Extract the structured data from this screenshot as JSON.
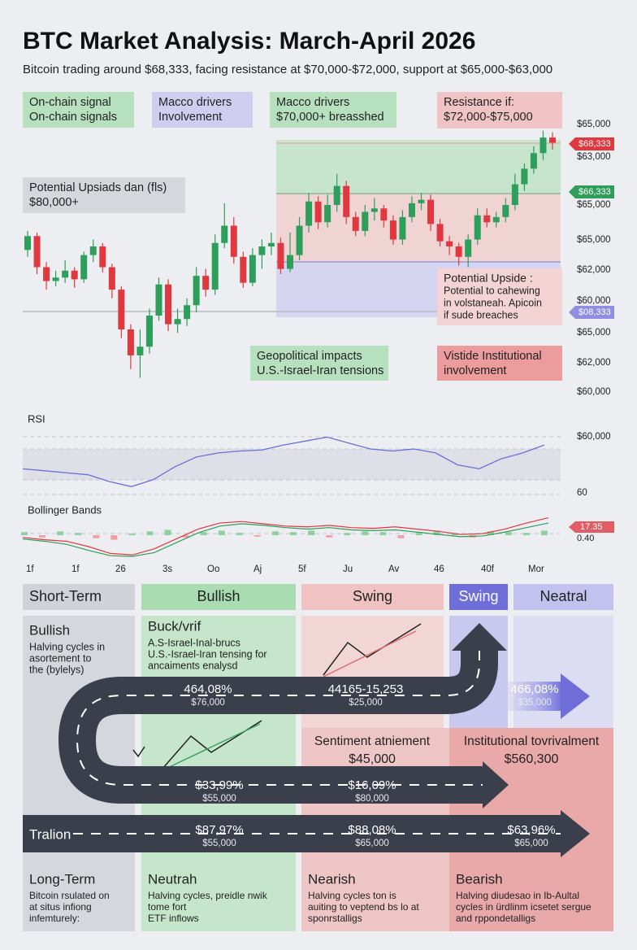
{
  "header": {
    "title": "BTC Market Analysis: March-April 2026",
    "subtitle": "Bitcoin trading around $68,333, facing resistance at $70,000-$72,000, support at $65,000-$63,000"
  },
  "chart_data": {
    "type": "candlestick",
    "ylim": [
      58000,
      74000
    ],
    "up_color": "#2e9e5b",
    "down_color": "#e0383e",
    "ohlc": [
      [
        66600,
        67700,
        66200,
        67400
      ],
      [
        67400,
        67600,
        65200,
        65600
      ],
      [
        65600,
        65900,
        64300,
        64800
      ],
      [
        64800,
        65400,
        64500,
        65000
      ],
      [
        65000,
        66000,
        64700,
        65400
      ],
      [
        65400,
        65600,
        64400,
        64900
      ],
      [
        64900,
        66500,
        64700,
        66300
      ],
      [
        66300,
        67200,
        65900,
        66800
      ],
      [
        66800,
        67000,
        65300,
        65600
      ],
      [
        65600,
        65800,
        63800,
        64300
      ],
      [
        64300,
        64500,
        61500,
        62000
      ],
      [
        62000,
        62300,
        59700,
        60500
      ],
      [
        60500,
        62000,
        59200,
        61000
      ],
      [
        61000,
        63200,
        60600,
        62800
      ],
      [
        62800,
        65000,
        62500,
        64600
      ],
      [
        64600,
        64900,
        61900,
        62300
      ],
      [
        62300,
        63200,
        61800,
        62600
      ],
      [
        62600,
        63800,
        62200,
        63400
      ],
      [
        63400,
        65600,
        63000,
        65100
      ],
      [
        65100,
        65500,
        63900,
        64300
      ],
      [
        64300,
        67500,
        64000,
        67000
      ],
      [
        67000,
        69300,
        66700,
        68000
      ],
      [
        68000,
        68500,
        65800,
        66200
      ],
      [
        66200,
        66500,
        64400,
        64700
      ],
      [
        64700,
        66700,
        64500,
        66300
      ],
      [
        66300,
        67200,
        65500,
        66800
      ],
      [
        66800,
        67600,
        66300,
        67000
      ],
      [
        67000,
        67300,
        65200,
        65500
      ],
      [
        65500,
        67600,
        65300,
        66300
      ],
      [
        66300,
        68500,
        66000,
        68000
      ],
      [
        68000,
        69900,
        67600,
        69400
      ],
      [
        69400,
        69700,
        67800,
        68200
      ],
      [
        68200,
        69800,
        67900,
        69200
      ],
      [
        69200,
        71000,
        68800,
        70300
      ],
      [
        70300,
        70600,
        68100,
        68500
      ],
      [
        68500,
        68800,
        67400,
        67700
      ],
      [
        67700,
        69200,
        67400,
        68800
      ],
      [
        68800,
        69600,
        68300,
        69000
      ],
      [
        69000,
        69200,
        67900,
        68300
      ],
      [
        68300,
        68600,
        66900,
        67200
      ],
      [
        67200,
        68900,
        66900,
        68500
      ],
      [
        68500,
        69700,
        68200,
        69300
      ],
      [
        69300,
        69900,
        68900,
        69500
      ],
      [
        69500,
        69800,
        67700,
        68100
      ],
      [
        68100,
        68400,
        66800,
        67100
      ],
      [
        67100,
        67400,
        66300,
        66800
      ],
      [
        66800,
        67000,
        65700,
        66200
      ],
      [
        66200,
        67500,
        65600,
        67200
      ],
      [
        67200,
        69000,
        66900,
        68600
      ],
      [
        68600,
        69000,
        67900,
        68200
      ],
      [
        68200,
        68800,
        67900,
        68500
      ],
      [
        68500,
        69600,
        68200,
        69200
      ],
      [
        69200,
        71000,
        68900,
        70400
      ],
      [
        70400,
        71600,
        70000,
        71300
      ],
      [
        71300,
        72600,
        71000,
        72200
      ],
      [
        72200,
        73500,
        71800,
        73100
      ],
      [
        73100,
        73400,
        72400,
        72800
      ]
    ],
    "x_labels": [
      "1f",
      "1f",
      "26",
      "3s",
      "Oo",
      "Aj",
      "5f",
      "Ju",
      "Av",
      "46",
      "40f",
      "Mor"
    ]
  },
  "price_labels": [
    "$65,000",
    "$63,000",
    "$65,000",
    "$65,000",
    "$62,000",
    "$60,000",
    "$65,000",
    "$62,000",
    "$60,000"
  ],
  "price_tags": [
    "$68,333",
    "$66,333",
    "$08,333"
  ],
  "annotations": [
    {
      "lines": [
        "On-chain signal",
        "On-chain signals"
      ]
    },
    {
      "lines": [
        "Macco drivers",
        "Involvement"
      ]
    },
    {
      "lines": [
        "Macco drivers",
        "$70,000+ breasshed"
      ]
    },
    {
      "lines": [
        "Resistance if:",
        "$72,000-$75,000"
      ]
    },
    {
      "lines": [
        "Potential Upsiads dan (fls)",
        "$80,000+"
      ]
    },
    {
      "lines": [
        "Potential Upside :",
        "Potential to cahewing",
        "in volstaneah. Apicoin",
        "if sude breaches"
      ]
    },
    {
      "lines": [
        "Geopolitical impacts",
        "U.S.-Israel-Iran tensions"
      ]
    },
    {
      "lines": [
        "Vistide Institutional",
        "involvement"
      ]
    }
  ],
  "rsi": {
    "label": "RSI",
    "ylim": [
      20,
      80
    ],
    "values": [
      46,
      44,
      42,
      40,
      33,
      28,
      35,
      48,
      58,
      62,
      64,
      65,
      70,
      74,
      78,
      72,
      66,
      64,
      66,
      62,
      50,
      46,
      56,
      62,
      70
    ],
    "color": "#6b6fd6",
    "axis_labels": [
      "$60,000",
      "60"
    ]
  },
  "bollinger": {
    "label": "Bollinger Bands",
    "ylim": [
      -3,
      3
    ],
    "upper": [
      -0.3,
      -0.6,
      -0.8,
      -1.5,
      -2.4,
      -2.6,
      -1.8,
      -0.5,
      0.8,
      1.6,
      1.8,
      1.5,
      1.2,
      1.1,
      1.3,
      1.0,
      0.9,
      1.1,
      0.8,
      0.5,
      0.1,
      0.2,
      0.8,
      1.6,
      2.3
    ],
    "lower": [
      -0.5,
      -0.8,
      -1.2,
      -2.0,
      -2.7,
      -2.8,
      -2.3,
      -1.0,
      0.3,
      1.2,
      1.5,
      1.3,
      1.0,
      0.8,
      1.0,
      0.7,
      0.6,
      0.7,
      0.4,
      0.1,
      -0.2,
      -0.1,
      0.4,
      1.0,
      1.6
    ],
    "upper_color": "#e0383e",
    "lower_color": "#2e9e5b",
    "bars": [
      0.4,
      -0.3,
      0.5,
      0.3,
      -0.4,
      -0.6,
      0.2,
      0.5,
      0.7,
      -0.3,
      0.4,
      0.6,
      0.3,
      -0.2,
      0.5,
      0.4,
      0.6,
      -0.3,
      0.3,
      0.5,
      0.4,
      -0.4,
      0.3,
      0.6,
      0.2,
      -0.3,
      0.5,
      0.4,
      0.3,
      0.6
    ],
    "axis_labels": [
      "17.35",
      "0.40"
    ]
  },
  "matrix": {
    "headers": [
      "Short-Term",
      "Bullish",
      "Swing",
      "Swing",
      "Neatral"
    ],
    "cells": [
      {
        "title": "Bullish",
        "lines": [
          "Halving cycles in",
          "asortement to",
          "the (bylelys)"
        ]
      },
      {
        "title": "Buck/vrif",
        "lines": [
          "A.S-Israel-Inal-brucs",
          "U.S.-Israel-Iran tensing for",
          "ancaiments enalysd"
        ]
      },
      {
        "title": "Sentiment atniement",
        "lines": [
          "$45,000"
        ]
      },
      {
        "title": "Institutional tovrivalment",
        "lines": [
          "$560,300"
        ]
      }
    ],
    "road_label": "Tralion",
    "road": [
      {
        "pct": "464,08%",
        "price": "$76,000"
      },
      {
        "pct": "44165-15,253",
        "price": "$25,000"
      },
      {
        "pct": "466,08%",
        "price": "$35,000"
      },
      {
        "pct": "$33,99%",
        "price": "$55,000"
      },
      {
        "pct": "$16,09%",
        "price": "$80,000"
      },
      {
        "pct": "$87,97%",
        "price": "$55,000"
      },
      {
        "pct": "$88,08%",
        "price": "$65,000"
      },
      {
        "pct": "$63,96%",
        "price": "$65,000"
      }
    ],
    "bottom": [
      {
        "title": "Long-Term",
        "lines": [
          "Bitcoin rsulated on",
          "at situs infiong",
          "infemturely:"
        ]
      },
      {
        "title": "Neutrah",
        "lines": [
          "Halving cycles, preidle nwik",
          "tome fort",
          "ETF inflows"
        ]
      },
      {
        "title": "Nearish",
        "lines": [
          "Halving cycles ton is",
          "auiting to veptend bs lo at",
          "sponrstalligs"
        ]
      },
      {
        "title": "Bearish",
        "lines": [
          "Halving diudesao in Ib-Aultal",
          "cycles in ürdlinm icsetet sergue",
          "and rppondetalligs"
        ]
      }
    ]
  }
}
